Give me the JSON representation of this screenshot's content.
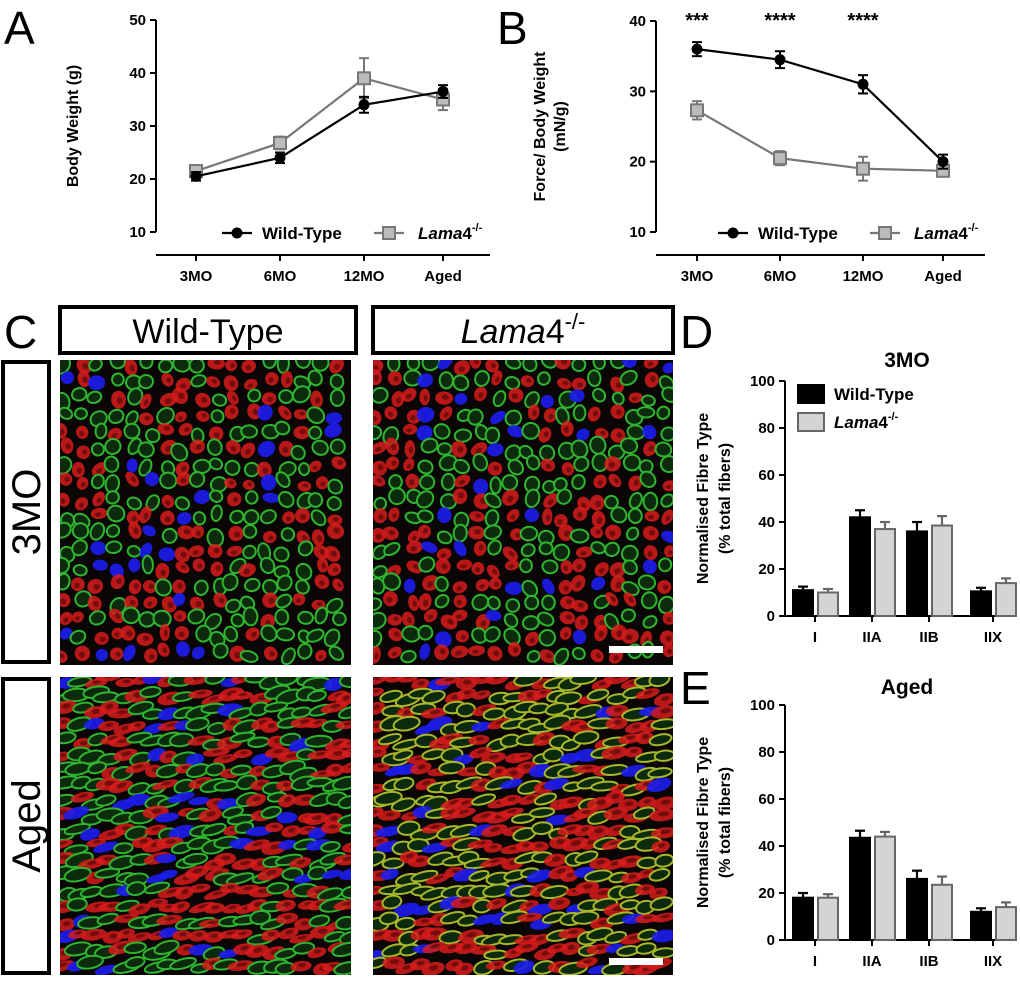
{
  "panels": {
    "A": "A",
    "B": "B",
    "C": "C",
    "D": "D",
    "E": "E"
  },
  "legend_labels": {
    "wt": "Wild-Type",
    "ko_italic": "Lama",
    "ko_plain": "4",
    "ko_sup": "-/-"
  },
  "colors": {
    "wt": "#000000",
    "ko_line": "#777777",
    "ko_marker_fill": "#bbbbbb",
    "ko_bar": "#d4d4d4",
    "ko_bar_stroke": "#666666",
    "stain_red": "#d81c1c",
    "stain_green": "#2fb52f",
    "stain_blue": "#1d1df0",
    "stain_yellow": "#a8b82a"
  },
  "micrographs": {
    "col_headers": [
      "Wild-Type",
      "Lama4-/-"
    ],
    "row_labels": [
      "3MO",
      "Aged"
    ]
  },
  "chart_data": [
    {
      "id": "A",
      "type": "line",
      "categories": [
        "3MO",
        "6MO",
        "12MO",
        "Aged"
      ],
      "ylabel": "Body Weight  (g)",
      "ylim": [
        10,
        50
      ],
      "yticks": [
        10,
        20,
        30,
        40,
        50
      ],
      "series": [
        {
          "name": "Wild-Type",
          "values": [
            20.5,
            24,
            34,
            36.5
          ],
          "errors": [
            0.8,
            1.0,
            1.5,
            1.2
          ]
        },
        {
          "name": "Lama4-/-",
          "values": [
            21.5,
            26.8,
            39,
            35
          ],
          "errors": [
            1.0,
            1.2,
            3.8,
            2.0
          ]
        }
      ],
      "annotations": []
    },
    {
      "id": "B",
      "type": "line",
      "categories": [
        "3MO",
        "6MO",
        "12MO",
        "Aged"
      ],
      "ylabel_lines": [
        "Force/ Body Weight",
        "(mN/g)"
      ],
      "ylim": [
        10,
        40
      ],
      "yticks": [
        10,
        20,
        30,
        40
      ],
      "series": [
        {
          "name": "Wild-Type",
          "values": [
            36,
            34.5,
            31,
            20
          ],
          "errors": [
            1.0,
            1.2,
            1.3,
            1.0
          ]
        },
        {
          "name": "Lama4-/-",
          "values": [
            27.3,
            20.5,
            19,
            18.7
          ],
          "errors": [
            1.3,
            1.0,
            1.7,
            0.7
          ]
        }
      ],
      "annotations": [
        "***",
        "****",
        "****",
        ""
      ]
    },
    {
      "id": "D",
      "type": "bar",
      "title": "3MO",
      "categories": [
        "I",
        "IIA",
        "IIB",
        "IIX"
      ],
      "ylabel_lines": [
        "Normalised  Fibre Type",
        "(% total fibers)"
      ],
      "ylim": [
        0,
        100
      ],
      "yticks": [
        0,
        20,
        40,
        60,
        80,
        100
      ],
      "series": [
        {
          "name": "Wild-Type",
          "values": [
            11,
            42,
            36,
            10.5
          ],
          "errors": [
            1.5,
            3.0,
            4.0,
            1.5
          ]
        },
        {
          "name": "Lama4-/-",
          "values": [
            10,
            37,
            38.5,
            14
          ],
          "errors": [
            1.5,
            3.0,
            4.0,
            2.0
          ]
        }
      ]
    },
    {
      "id": "E",
      "type": "bar",
      "title": "Aged",
      "categories": [
        "I",
        "IIA",
        "IIB",
        "IIX"
      ],
      "ylabel_lines": [
        "Normalised  Fibre Type",
        "(% total fibers)"
      ],
      "ylim": [
        0,
        100
      ],
      "yticks": [
        0,
        20,
        40,
        60,
        80,
        100
      ],
      "series": [
        {
          "name": "Wild-Type",
          "values": [
            18,
            43.5,
            26,
            12
          ],
          "errors": [
            2.0,
            3.0,
            3.5,
            1.5
          ]
        },
        {
          "name": "Lama4-/-",
          "values": [
            18,
            44,
            23.5,
            14
          ],
          "errors": [
            1.5,
            2.0,
            3.5,
            2.0
          ]
        }
      ]
    }
  ]
}
